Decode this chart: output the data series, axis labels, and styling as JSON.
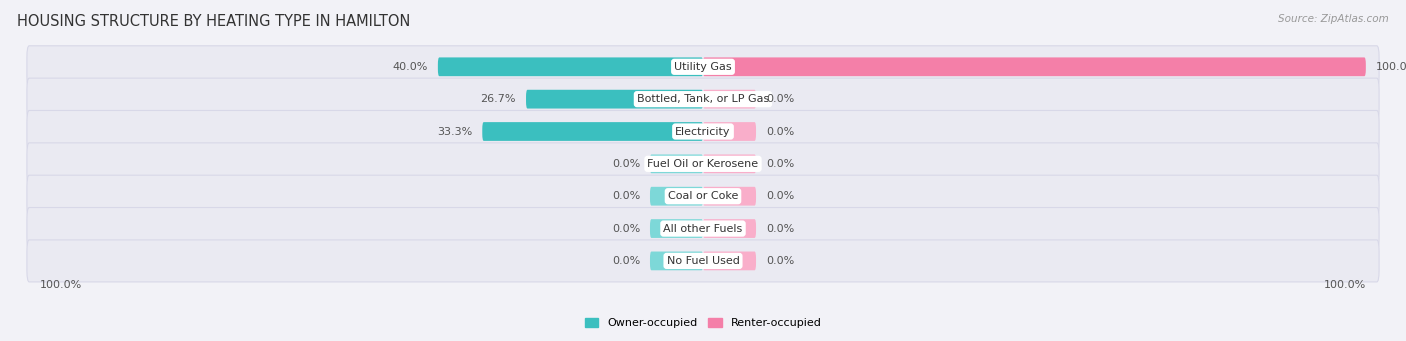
{
  "title": "HOUSING STRUCTURE BY HEATING TYPE IN HAMILTON",
  "source": "Source: ZipAtlas.com",
  "categories": [
    "Utility Gas",
    "Bottled, Tank, or LP Gas",
    "Electricity",
    "Fuel Oil or Kerosene",
    "Coal or Coke",
    "All other Fuels",
    "No Fuel Used"
  ],
  "owner_values": [
    40.0,
    26.7,
    33.3,
    0.0,
    0.0,
    0.0,
    0.0
  ],
  "renter_values": [
    100.0,
    0.0,
    0.0,
    0.0,
    0.0,
    0.0,
    0.0
  ],
  "owner_color": "#3BBFBF",
  "renter_color": "#F47FA8",
  "owner_color_stub": "#7DD8D8",
  "renter_color_stub": "#F9AECA",
  "owner_label": "Owner-occupied",
  "renter_label": "Renter-occupied",
  "bg_color": "#f2f2f7",
  "row_bg_color": "#eaeaf2",
  "max_val": 100.0,
  "stub_val": 8.0,
  "title_fontsize": 10.5,
  "label_fontsize": 8.0,
  "cat_fontsize": 8.0,
  "axis_label_fontsize": 8.0,
  "bar_height": 0.58,
  "xlim_left": -105,
  "xlim_right": 105
}
